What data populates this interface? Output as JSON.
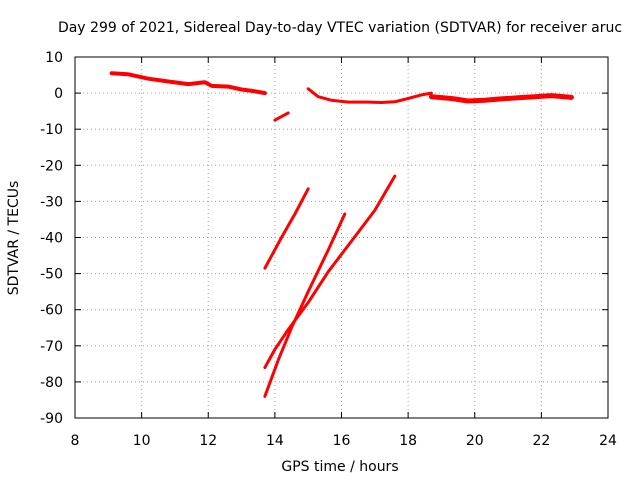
{
  "chart_data": {
    "type": "line",
    "title": "Day 299 of 2021, Sidereal Day-to-day VTEC variation (SDTVAR) for receiver aruc",
    "xlabel": "GPS time / hours",
    "ylabel": "SDTVAR / TECUs",
    "xlim": [
      8,
      24
    ],
    "ylim": [
      -90,
      10
    ],
    "xticks": [
      8,
      10,
      12,
      14,
      16,
      18,
      20,
      22,
      24
    ],
    "yticks": [
      10,
      0,
      -10,
      -20,
      -30,
      -40,
      -50,
      -60,
      -70,
      -80,
      -90
    ],
    "grid": true,
    "legend": "none",
    "color": "#ff0000",
    "series": [
      {
        "thickness": 4,
        "points": [
          [
            9.1,
            5.5
          ],
          [
            9.6,
            5.2
          ],
          [
            10.2,
            4.0
          ],
          [
            10.8,
            3.2
          ],
          [
            11.4,
            2.5
          ],
          [
            11.9,
            3.0
          ],
          [
            12.1,
            2.0
          ],
          [
            12.6,
            1.8
          ],
          [
            13.0,
            1.0
          ],
          [
            13.4,
            0.5
          ],
          [
            13.7,
            0.0
          ]
        ]
      },
      {
        "thickness": 3,
        "points": [
          [
            14.0,
            -7.5
          ],
          [
            14.2,
            -6.5
          ],
          [
            14.4,
            -5.5
          ]
        ]
      },
      {
        "thickness": 3,
        "points": [
          [
            15.0,
            1.2
          ],
          [
            15.3,
            -1.0
          ],
          [
            15.7,
            -2.0
          ],
          [
            16.2,
            -2.5
          ],
          [
            16.8,
            -2.5
          ],
          [
            17.2,
            -2.6
          ],
          [
            17.6,
            -2.4
          ],
          [
            18.0,
            -1.5
          ],
          [
            18.4,
            -0.5
          ],
          [
            18.7,
            0.0
          ]
        ]
      },
      {
        "thickness": 5,
        "points": [
          [
            18.7,
            -1.0
          ],
          [
            19.3,
            -1.5
          ],
          [
            19.8,
            -2.2
          ],
          [
            20.3,
            -2.0
          ],
          [
            20.8,
            -1.6
          ],
          [
            21.3,
            -1.3
          ],
          [
            21.8,
            -1.0
          ],
          [
            22.3,
            -0.7
          ],
          [
            22.9,
            -1.2
          ]
        ]
      },
      {
        "thickness": 3,
        "points": [
          [
            13.7,
            -48.5
          ],
          [
            14.2,
            -40.0
          ],
          [
            14.6,
            -33.5
          ],
          [
            15.0,
            -26.5
          ]
        ]
      },
      {
        "thickness": 3,
        "points": [
          [
            13.7,
            -84.0
          ],
          [
            14.1,
            -74.0
          ],
          [
            14.5,
            -65.0
          ],
          [
            15.0,
            -55.0
          ],
          [
            15.6,
            -43.5
          ],
          [
            16.1,
            -33.5
          ]
        ]
      },
      {
        "thickness": 3,
        "points": [
          [
            13.7,
            -76.0
          ],
          [
            14.0,
            -71.0
          ],
          [
            14.4,
            -65.5
          ],
          [
            15.0,
            -58.0
          ],
          [
            15.6,
            -49.5
          ],
          [
            16.3,
            -41.0
          ],
          [
            17.0,
            -32.5
          ],
          [
            17.6,
            -23.0
          ]
        ]
      }
    ]
  }
}
